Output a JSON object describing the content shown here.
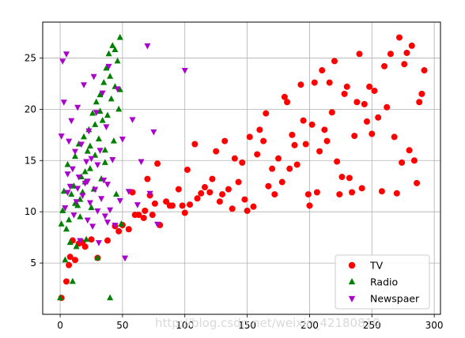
{
  "chart_data": {
    "type": "scatter",
    "xlim": [
      -14,
      305
    ],
    "ylim": [
      0,
      28.5
    ],
    "x_ticks": [
      0,
      50,
      100,
      150,
      200,
      250,
      300
    ],
    "y_ticks": [
      5,
      10,
      15,
      20,
      25
    ],
    "grid": true,
    "legend_position": "lower-right",
    "series": [
      {
        "name": "TV",
        "color": "#ff0000",
        "marker": "circle",
        "points": [
          [
            1,
            1.6
          ],
          [
            5,
            3.2
          ],
          [
            7,
            4.8
          ],
          [
            8,
            5.6
          ],
          [
            10,
            7.2
          ],
          [
            12,
            5.3
          ],
          [
            15,
            6.9
          ],
          [
            18,
            7.0
          ],
          [
            20,
            6.6
          ],
          [
            25,
            7.3
          ],
          [
            30,
            5.5
          ],
          [
            38,
            7.2
          ],
          [
            44,
            8.6
          ],
          [
            47,
            8.1
          ],
          [
            50,
            8.7
          ],
          [
            55,
            8.3
          ],
          [
            58,
            11.9
          ],
          [
            60,
            9.7
          ],
          [
            63,
            9.7
          ],
          [
            67,
            9.4
          ],
          [
            68,
            10.1
          ],
          [
            70,
            13.2
          ],
          [
            72,
            11.6
          ],
          [
            74,
            9.7
          ],
          [
            76,
            10.8
          ],
          [
            78,
            14.7
          ],
          [
            80,
            8.7
          ],
          [
            85,
            11.0
          ],
          [
            88,
            10.6
          ],
          [
            90,
            10.6
          ],
          [
            95,
            12.2
          ],
          [
            98,
            10.6
          ],
          [
            100,
            9.9
          ],
          [
            102,
            14.1
          ],
          [
            104,
            10.7
          ],
          [
            108,
            16.6
          ],
          [
            110,
            11.3
          ],
          [
            113,
            11.8
          ],
          [
            116,
            12.4
          ],
          [
            120,
            11.9
          ],
          [
            122,
            13.2
          ],
          [
            125,
            15.9
          ],
          [
            128,
            11.0
          ],
          [
            130,
            11.7
          ],
          [
            132,
            16.9
          ],
          [
            135,
            12.2
          ],
          [
            138,
            10.3
          ],
          [
            140,
            15.2
          ],
          [
            143,
            12.9
          ],
          [
            146,
            14.8
          ],
          [
            148,
            11.2
          ],
          [
            150,
            10.1
          ],
          [
            152,
            17.3
          ],
          [
            155,
            10.5
          ],
          [
            158,
            15.6
          ],
          [
            160,
            18.0
          ],
          [
            163,
            16.9
          ],
          [
            165,
            19.6
          ],
          [
            167,
            12.5
          ],
          [
            170,
            14.2
          ],
          [
            172,
            11.7
          ],
          [
            175,
            15.2
          ],
          [
            178,
            12.9
          ],
          [
            180,
            21.2
          ],
          [
            182,
            20.7
          ],
          [
            184,
            14.2
          ],
          [
            186,
            17.5
          ],
          [
            188,
            16.5
          ],
          [
            190,
            14.6
          ],
          [
            193,
            22.4
          ],
          [
            195,
            18.9
          ],
          [
            197,
            16.6
          ],
          [
            199,
            11.7
          ],
          [
            200,
            10.6
          ],
          [
            202,
            18.5
          ],
          [
            204,
            22.6
          ],
          [
            206,
            11.9
          ],
          [
            208,
            15.9
          ],
          [
            210,
            23.8
          ],
          [
            212,
            18.0
          ],
          [
            214,
            16.9
          ],
          [
            216,
            22.6
          ],
          [
            218,
            19.7
          ],
          [
            220,
            24.7
          ],
          [
            222,
            14.9
          ],
          [
            224,
            11.7
          ],
          [
            226,
            13.4
          ],
          [
            228,
            21.5
          ],
          [
            230,
            22.2
          ],
          [
            232,
            13.3
          ],
          [
            234,
            11.9
          ],
          [
            236,
            17.4
          ],
          [
            238,
            20.7
          ],
          [
            240,
            25.4
          ],
          [
            242,
            12.3
          ],
          [
            244,
            20.5
          ],
          [
            246,
            18.8
          ],
          [
            248,
            22.2
          ],
          [
            250,
            17.6
          ],
          [
            252,
            21.8
          ],
          [
            255,
            19.2
          ],
          [
            258,
            12.0
          ],
          [
            260,
            24.2
          ],
          [
            262,
            20.2
          ],
          [
            265,
            25.4
          ],
          [
            268,
            17.3
          ],
          [
            270,
            11.8
          ],
          [
            272,
            27.0
          ],
          [
            274,
            14.8
          ],
          [
            276,
            24.4
          ],
          [
            278,
            25.5
          ],
          [
            280,
            16.0
          ],
          [
            282,
            26.2
          ],
          [
            284,
            15.0
          ],
          [
            286,
            12.8
          ],
          [
            288,
            20.7
          ],
          [
            290,
            21.5
          ],
          [
            292,
            23.8
          ]
        ]
      },
      {
        "name": "Radio",
        "color": "#008000",
        "marker": "triangle-up",
        "points": [
          [
            0,
            1.6
          ],
          [
            1,
            8.8
          ],
          [
            2,
            10.1
          ],
          [
            3,
            12.0
          ],
          [
            4,
            5.3
          ],
          [
            5,
            8.3
          ],
          [
            6,
            14.6
          ],
          [
            7,
            9.2
          ],
          [
            8,
            7.0
          ],
          [
            9,
            11.7
          ],
          [
            10,
            3.2
          ],
          [
            11,
            12.5
          ],
          [
            12,
            15.4
          ],
          [
            13,
            6.6
          ],
          [
            14,
            10.6
          ],
          [
            15,
            16.6
          ],
          [
            16,
            9.5
          ],
          [
            17,
            13.4
          ],
          [
            18,
            11.9
          ],
          [
            19,
            17.3
          ],
          [
            20,
            12.9
          ],
          [
            21,
            7.3
          ],
          [
            22,
            15.9
          ],
          [
            23,
            18.0
          ],
          [
            24,
            14.2
          ],
          [
            25,
            10.4
          ],
          [
            26,
            19.6
          ],
          [
            27,
            12.2
          ],
          [
            28,
            15.5
          ],
          [
            29,
            20.7
          ],
          [
            30,
            5.5
          ],
          [
            31,
            17.1
          ],
          [
            32,
            21.4
          ],
          [
            33,
            13.2
          ],
          [
            34,
            18.9
          ],
          [
            35,
            22.6
          ],
          [
            36,
            14.8
          ],
          [
            37,
            24.0
          ],
          [
            38,
            19.4
          ],
          [
            39,
            25.4
          ],
          [
            40,
            1.6
          ],
          [
            41,
            21.0
          ],
          [
            42,
            26.2
          ],
          [
            43,
            16.9
          ],
          [
            44,
            22.2
          ],
          [
            45,
            11.7
          ],
          [
            46,
            24.7
          ],
          [
            47,
            20.0
          ],
          [
            48,
            27.0
          ],
          [
            49,
            8.8
          ],
          [
            12,
            10.8
          ],
          [
            16,
            11.2
          ],
          [
            20,
            13.9
          ],
          [
            24,
            16.4
          ],
          [
            28,
            18.5
          ],
          [
            32,
            19.8
          ],
          [
            36,
            16.0
          ],
          [
            40,
            23.2
          ],
          [
            44,
            25.8
          ],
          [
            48,
            21.9
          ]
        ]
      },
      {
        "name": "Newspaer",
        "color": "#aa00cc",
        "marker": "triangle-down",
        "points": [
          [
            1,
            17.4
          ],
          [
            2,
            24.7
          ],
          [
            3,
            20.7
          ],
          [
            4,
            10.4
          ],
          [
            5,
            25.4
          ],
          [
            6,
            11.9
          ],
          [
            7,
            16.9
          ],
          [
            8,
            12.5
          ],
          [
            9,
            18.9
          ],
          [
            10,
            14.2
          ],
          [
            11,
            9.7
          ],
          [
            12,
            15.9
          ],
          [
            13,
            11.0
          ],
          [
            14,
            20.2
          ],
          [
            15,
            13.4
          ],
          [
            16,
            7.2
          ],
          [
            17,
            16.6
          ],
          [
            18,
            11.6
          ],
          [
            19,
            22.4
          ],
          [
            20,
            12.8
          ],
          [
            21,
            14.9
          ],
          [
            22,
            9.2
          ],
          [
            23,
            17.9
          ],
          [
            24,
            10.9
          ],
          [
            25,
            15.2
          ],
          [
            26,
            8.6
          ],
          [
            27,
            23.2
          ],
          [
            28,
            12.2
          ],
          [
            29,
            19.7
          ],
          [
            30,
            14.6
          ],
          [
            31,
            7.0
          ],
          [
            32,
            16.0
          ],
          [
            33,
            11.3
          ],
          [
            34,
            21.6
          ],
          [
            35,
            13.1
          ],
          [
            36,
            9.6
          ],
          [
            37,
            18.3
          ],
          [
            38,
            12.7
          ],
          [
            39,
            24.2
          ],
          [
            40,
            10.2
          ],
          [
            42,
            15.1
          ],
          [
            44,
            8.7
          ],
          [
            46,
            22.0
          ],
          [
            48,
            11.1
          ],
          [
            50,
            17.1
          ],
          [
            52,
            5.5
          ],
          [
            55,
            12.0
          ],
          [
            58,
            19.0
          ],
          [
            62,
            10.7
          ],
          [
            65,
            14.9
          ],
          [
            70,
            26.2
          ],
          [
            72,
            11.8
          ],
          [
            75,
            17.8
          ],
          [
            78,
            8.8
          ],
          [
            100,
            23.8
          ],
          [
            6,
            13.7
          ],
          [
            14,
            12.3
          ],
          [
            22,
            13.0
          ],
          [
            30,
            10.1
          ],
          [
            38,
            9.0
          ]
        ]
      }
    ]
  },
  "legend": [
    {
      "label": "TV",
      "color": "#ff0000",
      "marker": "circle"
    },
    {
      "label": "Radio",
      "color": "#008000",
      "marker": "triangle-up"
    },
    {
      "label": "Newspaer",
      "color": "#aa00cc",
      "marker": "triangle-down"
    }
  ],
  "watermark": "http://blog.csdn.net/weixin_42180810"
}
